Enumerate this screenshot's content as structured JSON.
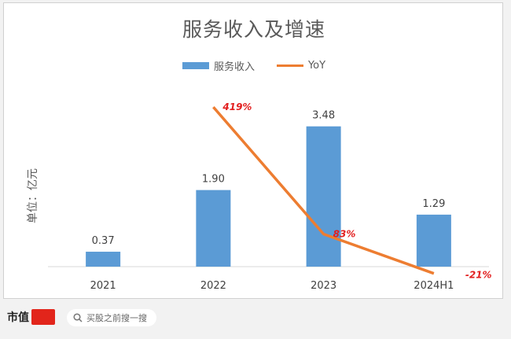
{
  "chart_data": {
    "type": "bar",
    "title": "服务收入及增速",
    "ylabel": "单位：亿元",
    "categories": [
      "2021",
      "2022",
      "2023",
      "2024H1"
    ],
    "series": [
      {
        "name": "服务收入",
        "type": "bar",
        "values": [
          0.37,
          1.9,
          3.48,
          1.29
        ],
        "labels": [
          "0.37",
          "1.90",
          "3.48",
          "1.29"
        ],
        "color": "#5b9bd5"
      },
      {
        "name": "YoY",
        "type": "line",
        "values": [
          null,
          419,
          83,
          -21
        ],
        "labels": [
          "",
          "419%",
          "83%",
          "-21%"
        ],
        "color": "#ed7d31",
        "label_color": "#e21f1f"
      }
    ],
    "ylim": [
      0,
      4
    ],
    "y2lim": [
      -30,
      440
    ],
    "grid": false,
    "legend_position": "top"
  },
  "footer": {
    "brand": "市值",
    "search_text": "买股之前搜一搜",
    "search_icon": "search-icon"
  }
}
